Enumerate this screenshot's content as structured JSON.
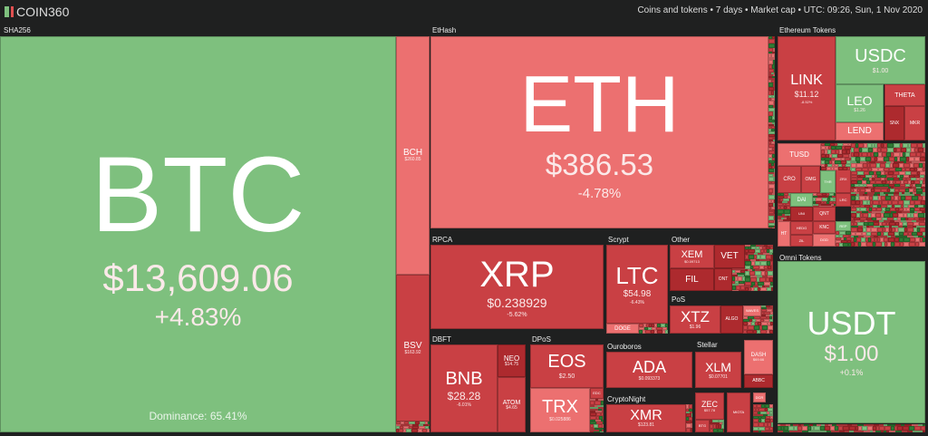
{
  "header": {
    "logo": "COIN360",
    "meta": "Coins and tokens  •  7 days  •  Market cap  •  UTC: 09:26, Sun, 1 Nov 2020"
  },
  "colors": {
    "up": "#7ec07e",
    "down_light": "#ec7070",
    "down": "#c94044",
    "down_dark": "#ad2a2e",
    "up_dark": "#2f7a34",
    "background": "#1f2020"
  },
  "groups": {
    "sha256": "SHA256",
    "ethash": "EtHash",
    "eth_tokens": "Ethereum Tokens",
    "rpca": "RPCA",
    "scrypt": "Scrypt",
    "other": "Other",
    "pos": "PoS",
    "dbft": "DBFT",
    "dpos": "DPoS",
    "ouroboros": "Ouroboros",
    "stellar": "Stellar",
    "cryptonight": "CryptoNight",
    "omni": "Omni Tokens"
  },
  "btc": {
    "symbol": "BTC",
    "price": "$13,609.06",
    "change": "+4.83%",
    "dominance": "Dominance: 65.41%"
  },
  "bch": {
    "symbol": "BCH",
    "price": "$260.85"
  },
  "bsv": {
    "symbol": "BSV",
    "price": "$163.92"
  },
  "eth": {
    "symbol": "ETH",
    "price": "$386.53",
    "change": "-4.78%"
  },
  "xrp": {
    "symbol": "XRP",
    "price": "$0.238929",
    "change": "-5.62%"
  },
  "ltc": {
    "symbol": "LTC",
    "price": "$54.98",
    "change": "-6.43%"
  },
  "doge": {
    "symbol": "DOGE"
  },
  "xem": {
    "symbol": "XEM",
    "price": "$0.09713"
  },
  "vet": {
    "symbol": "VET"
  },
  "fil": {
    "symbol": "FIL"
  },
  "ont": {
    "symbol": "ONT"
  },
  "xtz": {
    "symbol": "XTZ",
    "price": "$1.96"
  },
  "algo": {
    "symbol": "ALGO"
  },
  "waves": {
    "symbol": "WAVES"
  },
  "bnb": {
    "symbol": "BNB",
    "price": "$28.28",
    "change": "-6.01%"
  },
  "neo": {
    "symbol": "NEO",
    "price": "$14.75"
  },
  "atom": {
    "symbol": "ATOM",
    "price": "$4.65"
  },
  "eos": {
    "symbol": "EOS",
    "price": "$2.50"
  },
  "trx": {
    "symbol": "TRX",
    "price": "$0.025886"
  },
  "edc": {
    "symbol": "EDC"
  },
  "ada": {
    "symbol": "ADA",
    "price": "$0.093373"
  },
  "xmr": {
    "symbol": "XMR",
    "price": "$123.81"
  },
  "xlm": {
    "symbol": "XLM",
    "price": "$0.07701"
  },
  "zec": {
    "symbol": "ZEC",
    "price": "$57.78"
  },
  "btg": {
    "symbol": "BTG"
  },
  "miota": {
    "symbol": "MIOTA"
  },
  "dash": {
    "symbol": "DASH",
    "price": "$69.66"
  },
  "abbc": {
    "symbol": "ABBC"
  },
  "dcr": {
    "symbol": "DCR"
  },
  "link": {
    "symbol": "LINK",
    "price": "$11.12",
    "change": "-8.52%"
  },
  "usdc": {
    "symbol": "USDC",
    "price": "$1.00"
  },
  "leo": {
    "symbol": "LEO",
    "price": "$1.26"
  },
  "lend": {
    "symbol": "LEND"
  },
  "theta": {
    "symbol": "THETA"
  },
  "snx": {
    "symbol": "SNX"
  },
  "mkr": {
    "symbol": "MKR"
  },
  "tusd": {
    "symbol": "TUSD"
  },
  "cro": {
    "symbol": "CRO"
  },
  "omg": {
    "symbol": "OMG"
  },
  "thr": {
    "symbol": "THR"
  },
  "zrx": {
    "symbol": "ZRX"
  },
  "dai": {
    "symbol": "DAI"
  },
  "lrc": {
    "symbol": "LRC"
  },
  "qnt": {
    "symbol": "QNT"
  },
  "knc": {
    "symbol": "KNC"
  },
  "rep": {
    "symbol": "REP"
  },
  "ht": {
    "symbol": "HT"
  },
  "hedg": {
    "symbol": "HEDG"
  },
  "zil": {
    "symbol": "ZIL"
  },
  "dgd": {
    "symbol": "DGD"
  },
  "uni": {
    "symbol": "UNI"
  },
  "usdt": {
    "symbol": "USDT",
    "price": "$1.00",
    "change": "+0.1%"
  }
}
